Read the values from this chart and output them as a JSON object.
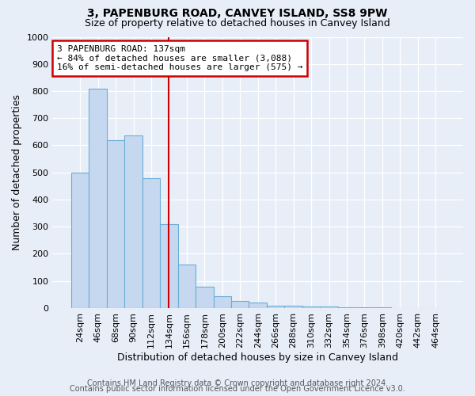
{
  "title1": "3, PAPENBURG ROAD, CANVEY ISLAND, SS8 9PW",
  "title2": "Size of property relative to detached houses in Canvey Island",
  "xlabel": "Distribution of detached houses by size in Canvey Island",
  "ylabel": "Number of detached properties",
  "bin_labels": [
    "24sqm",
    "46sqm",
    "68sqm",
    "90sqm",
    "112sqm",
    "134sqm",
    "156sqm",
    "178sqm",
    "200sqm",
    "222sqm",
    "244sqm",
    "266sqm",
    "288sqm",
    "310sqm",
    "332sqm",
    "354sqm",
    "376sqm",
    "398sqm",
    "420sqm",
    "442sqm",
    "464sqm"
  ],
  "bar_heights": [
    500,
    810,
    620,
    635,
    480,
    310,
    160,
    80,
    45,
    25,
    20,
    10,
    10,
    5,
    5,
    3,
    3,
    3,
    0,
    0,
    0
  ],
  "bar_color": "#c5d8f0",
  "bar_edge_color": "#6aaed6",
  "bar_width": 1.0,
  "vline_x_index": 5,
  "vline_color": "#cc0000",
  "annotation_line1": "3 PAPENBURG ROAD: 137sqm",
  "annotation_line2": "← 84% of detached houses are smaller (3,088)",
  "annotation_line3": "16% of semi-detached houses are larger (575) →",
  "annotation_box_color": "#ffffff",
  "annotation_box_edge": "#cc0000",
  "ylim": [
    0,
    1000
  ],
  "yticks": [
    0,
    100,
    200,
    300,
    400,
    500,
    600,
    700,
    800,
    900,
    1000
  ],
  "footer1": "Contains HM Land Registry data © Crown copyright and database right 2024.",
  "footer2": "Contains public sector information licensed under the Open Government Licence v3.0.",
  "bg_color": "#e8eef8",
  "plot_bg_color": "#e8eef8",
  "grid_color": "#ffffff",
  "title1_fontsize": 10,
  "title2_fontsize": 9,
  "xlabel_fontsize": 9,
  "ylabel_fontsize": 9,
  "tick_fontsize": 8,
  "annotation_fontsize": 8,
  "footer_fontsize": 7
}
